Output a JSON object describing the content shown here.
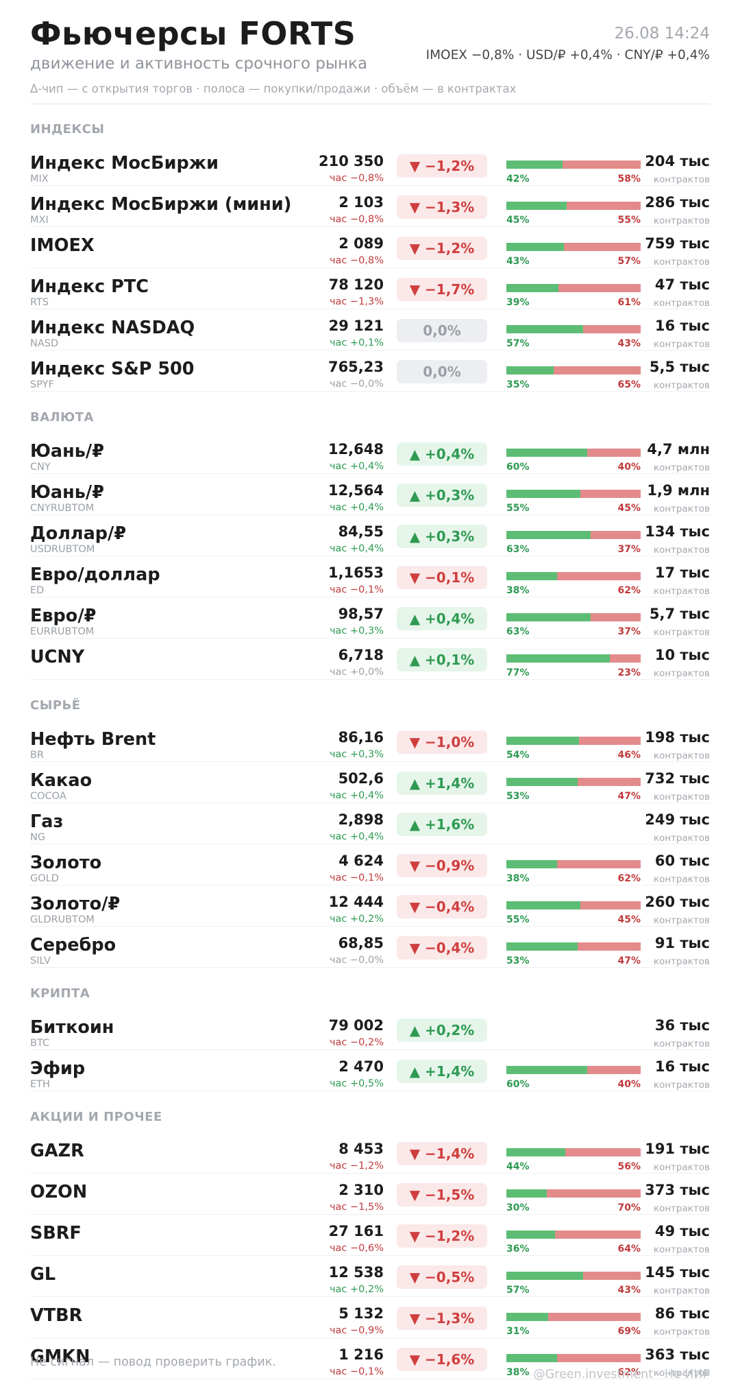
{
  "header": {
    "title": "Фьючерсы FORTS",
    "subtitle": "движение и активность срочного рынка",
    "legend": "Δ-чип — с открытия торгов  ·  полоса — покупки/продажи  ·  объём — в контрактах",
    "timestamp": "26.08 14:24",
    "macro": "IMOEX −0,8%  ·  USD/₽ +0,4%  ·  CNY/₽ +0,4%"
  },
  "colors": {
    "up": "#2e9a52",
    "down": "#c0393b",
    "flat": "#9aa0a6",
    "buy_bar": "#5dbd75",
    "sell_bar": "#e38b8b"
  },
  "sections": [
    {
      "title": "ИНДЕКСЫ",
      "rows": [
        {
          "name": "Индекс МосБиржи",
          "ticker": "MIX",
          "price": "210 350",
          "hour": "час −0,8%",
          "hour_dir": "down",
          "chip": "▼ −1,2%",
          "chip_dir": "down",
          "buy_pct": 42,
          "sell_pct": 58,
          "buy_label": "42%",
          "sell_label": "58%",
          "volume": "204 тыс",
          "volume_unit": "контрактов"
        },
        {
          "name": "Индекс МосБиржи (мини)",
          "ticker": "MXI",
          "price": "2 103",
          "hour": "час −0,8%",
          "hour_dir": "down",
          "chip": "▼ −1,3%",
          "chip_dir": "down",
          "buy_pct": 45,
          "sell_pct": 55,
          "buy_label": "45%",
          "sell_label": "55%",
          "volume": "286 тыс",
          "volume_unit": "контрактов"
        },
        {
          "name": "IMOEX",
          "ticker": "",
          "price": "2 089",
          "hour": "час −0,8%",
          "hour_dir": "down",
          "chip": "▼ −1,2%",
          "chip_dir": "down",
          "buy_pct": 43,
          "sell_pct": 57,
          "buy_label": "43%",
          "sell_label": "57%",
          "volume": "759 тыс",
          "volume_unit": "контрактов"
        },
        {
          "name": "Индекс РТС",
          "ticker": "RTS",
          "price": "78 120",
          "hour": "час −1,3%",
          "hour_dir": "down",
          "chip": "▼ −1,7%",
          "chip_dir": "down",
          "buy_pct": 39,
          "sell_pct": 61,
          "buy_label": "39%",
          "sell_label": "61%",
          "volume": "47 тыс",
          "volume_unit": "контрактов"
        },
        {
          "name": "Индекс NASDAQ",
          "ticker": "NASD",
          "price": "29 121",
          "hour": "час +0,1%",
          "hour_dir": "up",
          "chip": "0,0%",
          "chip_dir": "flat",
          "buy_pct": 57,
          "sell_pct": 43,
          "buy_label": "57%",
          "sell_label": "43%",
          "volume": "16 тыс",
          "volume_unit": "контрактов"
        },
        {
          "name": "Индекс S&P 500",
          "ticker": "SPYF",
          "price": "765,23",
          "hour": "час −0,0%",
          "hour_dir": "flat",
          "chip": "0,0%",
          "chip_dir": "flat",
          "buy_pct": 35,
          "sell_pct": 65,
          "buy_label": "35%",
          "sell_label": "65%",
          "volume": "5,5 тыс",
          "volume_unit": "контрактов"
        }
      ]
    },
    {
      "title": "ВАЛЮТА",
      "rows": [
        {
          "name": "Юань/₽",
          "ticker": "CNY",
          "price": "12,648",
          "hour": "час +0,4%",
          "hour_dir": "up",
          "chip": "▲ +0,4%",
          "chip_dir": "up",
          "buy_pct": 60,
          "sell_pct": 40,
          "buy_label": "60%",
          "sell_label": "40%",
          "volume": "4,7 млн",
          "volume_unit": "контрактов"
        },
        {
          "name": "Юань/₽",
          "ticker": "CNYRUBTOM",
          "price": "12,564",
          "hour": "час +0,4%",
          "hour_dir": "up",
          "chip": "▲ +0,3%",
          "chip_dir": "up",
          "buy_pct": 55,
          "sell_pct": 45,
          "buy_label": "55%",
          "sell_label": "45%",
          "volume": "1,9 млн",
          "volume_unit": "контрактов"
        },
        {
          "name": "Доллар/₽",
          "ticker": "USDRUBTOM",
          "price": "84,55",
          "hour": "час +0,4%",
          "hour_dir": "up",
          "chip": "▲ +0,3%",
          "chip_dir": "up",
          "buy_pct": 63,
          "sell_pct": 37,
          "buy_label": "63%",
          "sell_label": "37%",
          "volume": "134 тыс",
          "volume_unit": "контрактов"
        },
        {
          "name": "Евро/доллар",
          "ticker": "ED",
          "price": "1,1653",
          "hour": "час −0,1%",
          "hour_dir": "down",
          "chip": "▼ −0,1%",
          "chip_dir": "down",
          "buy_pct": 38,
          "sell_pct": 62,
          "buy_label": "38%",
          "sell_label": "62%",
          "volume": "17 тыс",
          "volume_unit": "контрактов"
        },
        {
          "name": "Евро/₽",
          "ticker": "EURRUBTOM",
          "price": "98,57",
          "hour": "час +0,3%",
          "hour_dir": "up",
          "chip": "▲ +0,4%",
          "chip_dir": "up",
          "buy_pct": 63,
          "sell_pct": 37,
          "buy_label": "63%",
          "sell_label": "37%",
          "volume": "5,7 тыс",
          "volume_unit": "контрактов"
        },
        {
          "name": "UCNY",
          "ticker": "",
          "price": "6,718",
          "hour": "час +0,0%",
          "hour_dir": "flat",
          "chip": "▲ +0,1%",
          "chip_dir": "up",
          "buy_pct": 77,
          "sell_pct": 23,
          "buy_label": "77%",
          "sell_label": "23%",
          "volume": "10 тыс",
          "volume_unit": "контрактов"
        }
      ]
    },
    {
      "title": "СЫРЬЁ",
      "rows": [
        {
          "name": "Нефть Brent",
          "ticker": "BR",
          "price": "86,16",
          "hour": "час +0,3%",
          "hour_dir": "up",
          "chip": "▼ −1,0%",
          "chip_dir": "down",
          "buy_pct": 54,
          "sell_pct": 46,
          "buy_label": "54%",
          "sell_label": "46%",
          "volume": "198 тыс",
          "volume_unit": "контрактов"
        },
        {
          "name": "Какао",
          "ticker": "COCOA",
          "price": "502,6",
          "hour": "час +0,4%",
          "hour_dir": "up",
          "chip": "▲ +1,4%",
          "chip_dir": "up",
          "buy_pct": 53,
          "sell_pct": 47,
          "buy_label": "53%",
          "sell_label": "47%",
          "volume": "732 тыс",
          "volume_unit": "контрактов"
        },
        {
          "name": "Газ",
          "ticker": "NG",
          "price": "2,898",
          "hour": "час +0,4%",
          "hour_dir": "up",
          "chip": "▲ +1,6%",
          "chip_dir": "up",
          "buy_pct": null,
          "sell_pct": null,
          "buy_label": "",
          "sell_label": "",
          "volume": "249 тыс",
          "volume_unit": "контрактов"
        },
        {
          "name": "Золото",
          "ticker": "GOLD",
          "price": "4 624",
          "hour": "час −0,1%",
          "hour_dir": "down",
          "chip": "▼ −0,9%",
          "chip_dir": "down",
          "buy_pct": 38,
          "sell_pct": 62,
          "buy_label": "38%",
          "sell_label": "62%",
          "volume": "60 тыс",
          "volume_unit": "контрактов"
        },
        {
          "name": "Золото/₽",
          "ticker": "GLDRUBTOM",
          "price": "12 444",
          "hour": "час +0,2%",
          "hour_dir": "up",
          "chip": "▼ −0,4%",
          "chip_dir": "down",
          "buy_pct": 55,
          "sell_pct": 45,
          "buy_label": "55%",
          "sell_label": "45%",
          "volume": "260 тыс",
          "volume_unit": "контрактов"
        },
        {
          "name": "Серебро",
          "ticker": "SILV",
          "price": "68,85",
          "hour": "час −0,0%",
          "hour_dir": "flat",
          "chip": "▼ −0,4%",
          "chip_dir": "down",
          "buy_pct": 53,
          "sell_pct": 47,
          "buy_label": "53%",
          "sell_label": "47%",
          "volume": "91 тыс",
          "volume_unit": "контрактов"
        }
      ]
    },
    {
      "title": "КРИПТА",
      "rows": [
        {
          "name": "Биткоин",
          "ticker": "BTC",
          "price": "79 002",
          "hour": "час −0,2%",
          "hour_dir": "down",
          "chip": "▲ +0,2%",
          "chip_dir": "up",
          "buy_pct": null,
          "sell_pct": null,
          "buy_label": "",
          "sell_label": "",
          "volume": "36 тыс",
          "volume_unit": "контрактов"
        },
        {
          "name": "Эфир",
          "ticker": "ETH",
          "price": "2 470",
          "hour": "час +0,5%",
          "hour_dir": "up",
          "chip": "▲ +1,4%",
          "chip_dir": "up",
          "buy_pct": 60,
          "sell_pct": 40,
          "buy_label": "60%",
          "sell_label": "40%",
          "volume": "16 тыс",
          "volume_unit": "контрактов"
        }
      ]
    },
    {
      "title": "АКЦИИ И ПРОЧЕЕ",
      "rows": [
        {
          "name": "GAZR",
          "ticker": "",
          "price": "8 453",
          "hour": "час −1,2%",
          "hour_dir": "down",
          "chip": "▼ −1,4%",
          "chip_dir": "down",
          "buy_pct": 44,
          "sell_pct": 56,
          "buy_label": "44%",
          "sell_label": "56%",
          "volume": "191 тыс",
          "volume_unit": "контрактов"
        },
        {
          "name": "OZON",
          "ticker": "",
          "price": "2 310",
          "hour": "час −1,5%",
          "hour_dir": "down",
          "chip": "▼ −1,5%",
          "chip_dir": "down",
          "buy_pct": 30,
          "sell_pct": 70,
          "buy_label": "30%",
          "sell_label": "70%",
          "volume": "373 тыс",
          "volume_unit": "контрактов"
        },
        {
          "name": "SBRF",
          "ticker": "",
          "price": "27 161",
          "hour": "час −0,6%",
          "hour_dir": "down",
          "chip": "▼ −1,2%",
          "chip_dir": "down",
          "buy_pct": 36,
          "sell_pct": 64,
          "buy_label": "36%",
          "sell_label": "64%",
          "volume": "49 тыс",
          "volume_unit": "контрактов"
        },
        {
          "name": "GL",
          "ticker": "",
          "price": "12 538",
          "hour": "час +0,2%",
          "hour_dir": "up",
          "chip": "▼ −0,5%",
          "chip_dir": "down",
          "buy_pct": 57,
          "sell_pct": 43,
          "buy_label": "57%",
          "sell_label": "43%",
          "volume": "145 тыс",
          "volume_unit": "контрактов"
        },
        {
          "name": "VTBR",
          "ticker": "",
          "price": "5 132",
          "hour": "час −0,9%",
          "hour_dir": "down",
          "chip": "▼ −1,3%",
          "chip_dir": "down",
          "buy_pct": 31,
          "sell_pct": 69,
          "buy_label": "31%",
          "sell_label": "69%",
          "volume": "86 тыс",
          "volume_unit": "контрактов"
        },
        {
          "name": "GMKN",
          "ticker": "",
          "price": "1 216",
          "hour": "час −0,1%",
          "hour_dir": "down",
          "chip": "▼ −1,6%",
          "chip_dir": "down",
          "buy_pct": 38,
          "sell_pct": 62,
          "buy_label": "38%",
          "sell_label": "62%",
          "volume": "363 тыс",
          "volume_unit": "контрактов"
        }
      ]
    }
  ],
  "footer": {
    "note": "Не сигнал — повод проверить график.",
    "credit": "@Green.investment · Не ИИР"
  }
}
